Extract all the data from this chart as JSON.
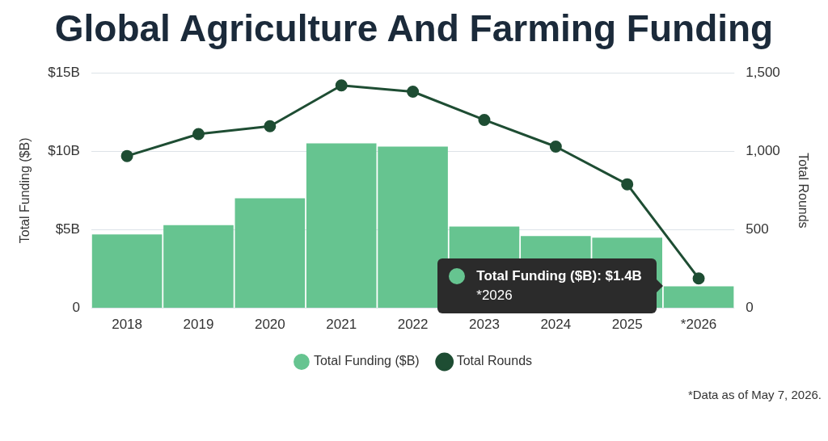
{
  "chart_data": {
    "type": "bar",
    "title": "Global Agriculture And Farming Funding",
    "ylabel": "Total Funding ($B)",
    "y2label": "Total Rounds",
    "categories": [
      "2018",
      "2019",
      "2020",
      "2021",
      "2022",
      "2023",
      "2024",
      "2025",
      "*2026"
    ],
    "series": [
      {
        "name": "Total Funding ($B)",
        "color": "#66c490",
        "values": [
          4.7,
          5.3,
          7.0,
          10.5,
          10.3,
          5.2,
          4.6,
          4.5,
          1.4
        ]
      },
      {
        "name": "Total Rounds",
        "type": "line",
        "axis": "y2",
        "color": "#1e4d33",
        "values": [
          970,
          1110,
          1160,
          1420,
          1380,
          1200,
          1030,
          790,
          190
        ]
      }
    ],
    "ylim": [
      0,
      15
    ],
    "yticks": [
      {
        "value": 0,
        "label": "0"
      },
      {
        "value": 5,
        "label": "$5B"
      },
      {
        "value": 10,
        "label": "$10B"
      },
      {
        "value": 15,
        "label": "$15B"
      }
    ],
    "y2lim": [
      0,
      1500
    ],
    "y2ticks": [
      {
        "value": 0,
        "label": "0"
      },
      {
        "value": 500,
        "label": "500"
      },
      {
        "value": 1000,
        "label": "1,000"
      },
      {
        "value": 1500,
        "label": "1,500"
      }
    ],
    "grid": "y",
    "legend": "bottom",
    "marker": "circle",
    "line_style": "solid",
    "annotations": [
      "Total Funding ($B): $1.4B\n*2026",
      "*Data as of May 7, 2026."
    ]
  }
}
